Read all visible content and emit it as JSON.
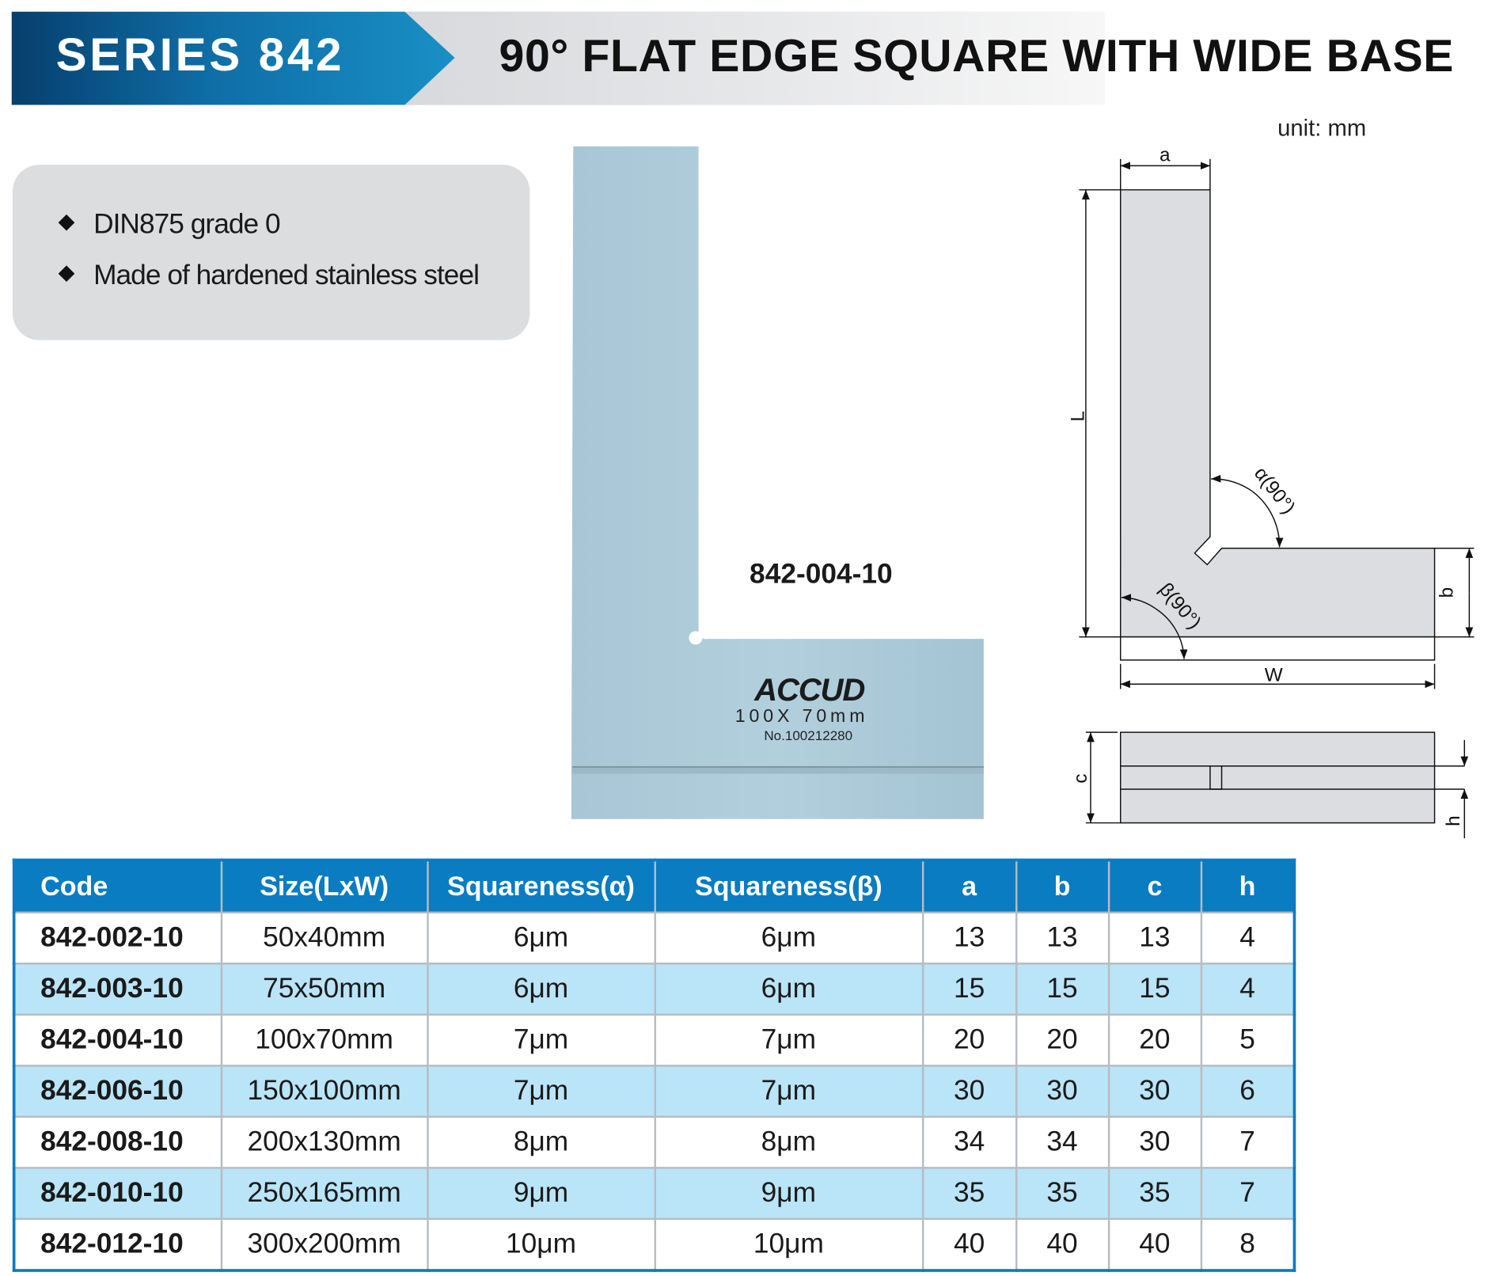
{
  "header": {
    "series": "SERIES 842",
    "title": "90° FLAT EDGE SQUARE WITH WIDE BASE"
  },
  "unit": "unit: mm",
  "features": [
    "DIN875 grade 0",
    "Made of hardened stainless steel"
  ],
  "photo": {
    "model_label": "842-004-10",
    "logo": "ACCUD",
    "engraved_size": "100X 70mm",
    "serial": "No.100212280"
  },
  "diagram": {
    "labels": {
      "a": "a",
      "L": "L",
      "b": "b",
      "W": "W",
      "c": "c",
      "h": "h",
      "alpha": "α(90°)",
      "beta": "β(90°)"
    }
  },
  "colors": {
    "header_blue": "#0a7cc2",
    "row_alt": "#bae4f7",
    "feature_box": "#dcdddf"
  },
  "table": {
    "headers": [
      "Code",
      "Size(LxW)",
      "Squareness(α)",
      "Squareness(β)",
      "a",
      "b",
      "c",
      "h"
    ],
    "rows": [
      [
        "842-002-10",
        "50x40mm",
        "6μm",
        "6μm",
        "13",
        "13",
        "13",
        "4"
      ],
      [
        "842-003-10",
        "75x50mm",
        "6μm",
        "6μm",
        "15",
        "15",
        "15",
        "4"
      ],
      [
        "842-004-10",
        "100x70mm",
        "7μm",
        "7μm",
        "20",
        "20",
        "20",
        "5"
      ],
      [
        "842-006-10",
        "150x100mm",
        "7μm",
        "7μm",
        "30",
        "30",
        "30",
        "6"
      ],
      [
        "842-008-10",
        "200x130mm",
        "8μm",
        "8μm",
        "34",
        "34",
        "30",
        "7"
      ],
      [
        "842-010-10",
        "250x165mm",
        "9μm",
        "9μm",
        "35",
        "35",
        "35",
        "7"
      ],
      [
        "842-012-10",
        "300x200mm",
        "10μm",
        "10μm",
        "40",
        "40",
        "40",
        "8"
      ]
    ]
  }
}
